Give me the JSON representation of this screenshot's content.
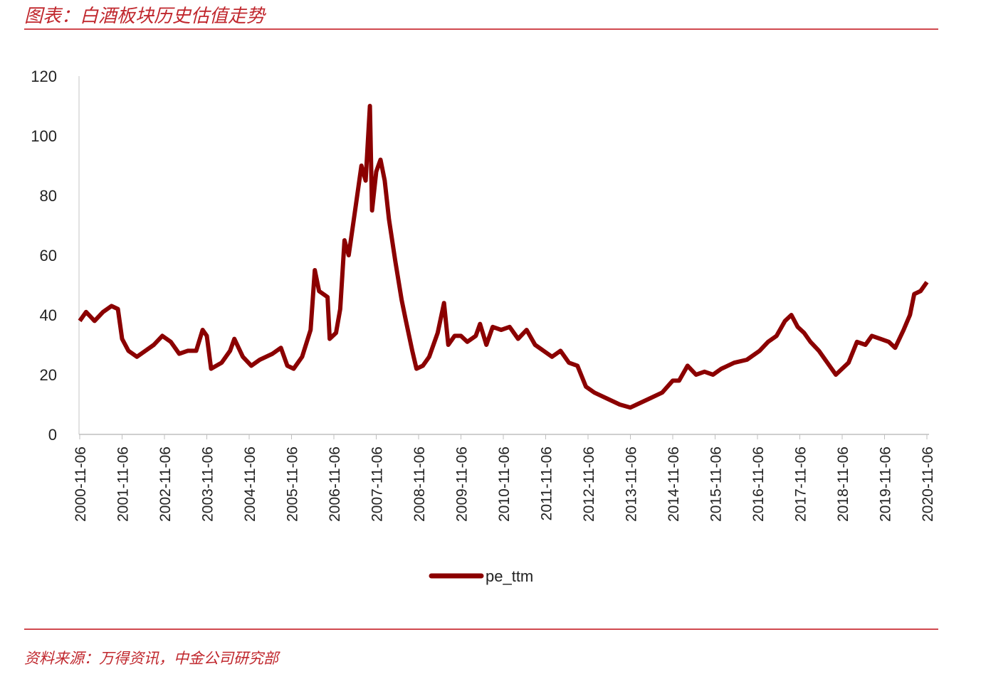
{
  "title": "图表：白酒板块历史估值走势",
  "source": "资料来源：万得资讯，中金公司研究部",
  "colors": {
    "line": "#8b0000",
    "accent": "#c0272d"
  },
  "chart_data": {
    "type": "line",
    "title": "图表：白酒板块历史估值走势",
    "xlabel": "",
    "ylabel": "",
    "ylim": [
      0,
      120
    ],
    "yticks": [
      "0",
      "20",
      "40",
      "60",
      "80",
      "100",
      "120"
    ],
    "xlim": [
      2000.85,
      2020.85
    ],
    "xticks": [
      "2000-11-06",
      "2001-11-06",
      "2002-11-06",
      "2003-11-06",
      "2004-11-06",
      "2005-11-06",
      "2006-11-06",
      "2007-11-06",
      "2008-11-06",
      "2009-11-06",
      "2010-11-06",
      "2011-11-06",
      "2012-11-06",
      "2013-11-06",
      "2014-11-06",
      "2015-11-06",
      "2016-11-06",
      "2017-11-06",
      "2018-11-06",
      "2019-11-06",
      "2020-11-06"
    ],
    "legend": {
      "position": "bottom",
      "entries": [
        "pe_ttm"
      ]
    },
    "grid": false,
    "series": [
      {
        "name": "pe_ttm",
        "points": [
          [
            2000.85,
            38
          ],
          [
            2001.0,
            41
          ],
          [
            2001.2,
            38
          ],
          [
            2001.4,
            41
          ],
          [
            2001.6,
            43
          ],
          [
            2001.75,
            42
          ],
          [
            2001.85,
            32
          ],
          [
            2002.0,
            28
          ],
          [
            2002.2,
            26
          ],
          [
            2002.4,
            28
          ],
          [
            2002.6,
            30
          ],
          [
            2002.8,
            33
          ],
          [
            2003.0,
            31
          ],
          [
            2003.2,
            27
          ],
          [
            2003.4,
            28
          ],
          [
            2003.6,
            28
          ],
          [
            2003.75,
            35
          ],
          [
            2003.85,
            33
          ],
          [
            2003.95,
            22
          ],
          [
            2004.2,
            24
          ],
          [
            2004.4,
            28
          ],
          [
            2004.5,
            32
          ],
          [
            2004.7,
            26
          ],
          [
            2004.9,
            23
          ],
          [
            2005.1,
            25
          ],
          [
            2005.4,
            27
          ],
          [
            2005.6,
            29
          ],
          [
            2005.75,
            23
          ],
          [
            2005.9,
            22
          ],
          [
            2006.1,
            26
          ],
          [
            2006.3,
            35
          ],
          [
            2006.4,
            55
          ],
          [
            2006.5,
            48
          ],
          [
            2006.7,
            46
          ],
          [
            2006.75,
            32
          ],
          [
            2006.9,
            34
          ],
          [
            2007.0,
            42
          ],
          [
            2007.1,
            65
          ],
          [
            2007.2,
            60
          ],
          [
            2007.35,
            75
          ],
          [
            2007.5,
            90
          ],
          [
            2007.6,
            85
          ],
          [
            2007.7,
            110
          ],
          [
            2007.75,
            75
          ],
          [
            2007.85,
            88
          ],
          [
            2007.95,
            92
          ],
          [
            2008.05,
            85
          ],
          [
            2008.15,
            72
          ],
          [
            2008.3,
            58
          ],
          [
            2008.45,
            45
          ],
          [
            2008.55,
            38
          ],
          [
            2008.7,
            28
          ],
          [
            2008.8,
            22
          ],
          [
            2008.95,
            23
          ],
          [
            2009.1,
            26
          ],
          [
            2009.3,
            34
          ],
          [
            2009.45,
            44
          ],
          [
            2009.55,
            30
          ],
          [
            2009.7,
            33
          ],
          [
            2009.85,
            33
          ],
          [
            2010.0,
            31
          ],
          [
            2010.2,
            33
          ],
          [
            2010.3,
            37
          ],
          [
            2010.45,
            30
          ],
          [
            2010.6,
            36
          ],
          [
            2010.8,
            35
          ],
          [
            2011.0,
            36
          ],
          [
            2011.2,
            32
          ],
          [
            2011.4,
            35
          ],
          [
            2011.6,
            30
          ],
          [
            2011.8,
            28
          ],
          [
            2012.0,
            26
          ],
          [
            2012.2,
            28
          ],
          [
            2012.4,
            24
          ],
          [
            2012.6,
            23
          ],
          [
            2012.8,
            16
          ],
          [
            2013.0,
            14
          ],
          [
            2013.3,
            12
          ],
          [
            2013.6,
            10
          ],
          [
            2013.85,
            9
          ],
          [
            2014.0,
            10
          ],
          [
            2014.3,
            12
          ],
          [
            2014.6,
            14
          ],
          [
            2014.85,
            18
          ],
          [
            2015.0,
            18
          ],
          [
            2015.2,
            23
          ],
          [
            2015.4,
            20
          ],
          [
            2015.6,
            21
          ],
          [
            2015.8,
            20
          ],
          [
            2016.0,
            22
          ],
          [
            2016.3,
            24
          ],
          [
            2016.6,
            25
          ],
          [
            2016.9,
            28
          ],
          [
            2017.1,
            31
          ],
          [
            2017.3,
            33
          ],
          [
            2017.5,
            38
          ],
          [
            2017.65,
            40
          ],
          [
            2017.8,
            36
          ],
          [
            2017.95,
            34
          ],
          [
            2018.1,
            31
          ],
          [
            2018.3,
            28
          ],
          [
            2018.5,
            24
          ],
          [
            2018.7,
            20
          ],
          [
            2018.85,
            22
          ],
          [
            2019.0,
            24
          ],
          [
            2019.2,
            31
          ],
          [
            2019.4,
            30
          ],
          [
            2019.55,
            33
          ],
          [
            2019.75,
            32
          ],
          [
            2019.95,
            31
          ],
          [
            2020.1,
            29
          ],
          [
            2020.3,
            35
          ],
          [
            2020.45,
            40
          ],
          [
            2020.55,
            47
          ],
          [
            2020.7,
            48
          ],
          [
            2020.85,
            51
          ]
        ]
      }
    ]
  }
}
